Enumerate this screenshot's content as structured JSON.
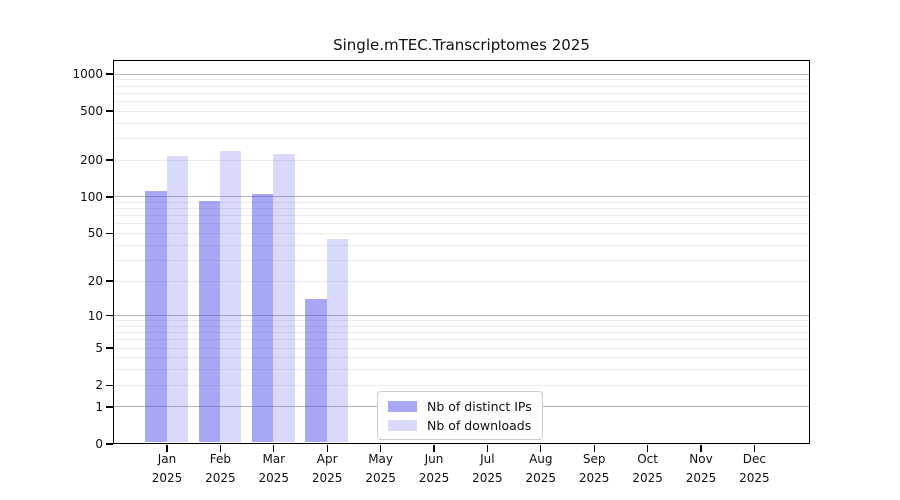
{
  "chart_data": {
    "type": "bar",
    "title": "Single.mTEC.Transcriptomes 2025",
    "year_label": "2025",
    "months": [
      "Jan",
      "Feb",
      "Mar",
      "Apr",
      "May",
      "Jun",
      "Jul",
      "Aug",
      "Sep",
      "Oct",
      "Nov",
      "Dec"
    ],
    "series": [
      {
        "name": "Nb of distinct IPs",
        "color": "rgba(80,80,235,0.5)",
        "values": [
          110,
          91,
          104,
          14,
          0,
          0,
          0,
          0,
          0,
          0,
          0,
          0
        ]
      },
      {
        "name": "Nb of downloads",
        "color": "rgba(80,80,235,0.22)",
        "values": [
          216,
          237,
          224,
          45,
          0,
          0,
          0,
          0,
          0,
          0,
          0,
          0
        ]
      }
    ],
    "y_scale": "log10(value+1)",
    "ylim": [
      0,
      1300
    ],
    "y_ticks": [
      0,
      1,
      2,
      5,
      10,
      20,
      50,
      100,
      200,
      500,
      1000
    ],
    "y_major_gridlines": [
      1,
      10,
      100,
      1000
    ],
    "y_minor_gridlines": [
      2,
      3,
      4,
      5,
      6,
      7,
      8,
      9,
      20,
      30,
      40,
      50,
      60,
      70,
      80,
      90,
      200,
      300,
      400,
      500,
      600,
      700,
      800,
      900
    ],
    "grid": {
      "major_color": "#b5b5b5",
      "minor_color": "#ebebeb"
    },
    "legend": {
      "location": "inside-lower-center"
    },
    "colors": {
      "bar_base": "#5050eb",
      "spine": "#000000",
      "background": "#ffffff"
    }
  }
}
